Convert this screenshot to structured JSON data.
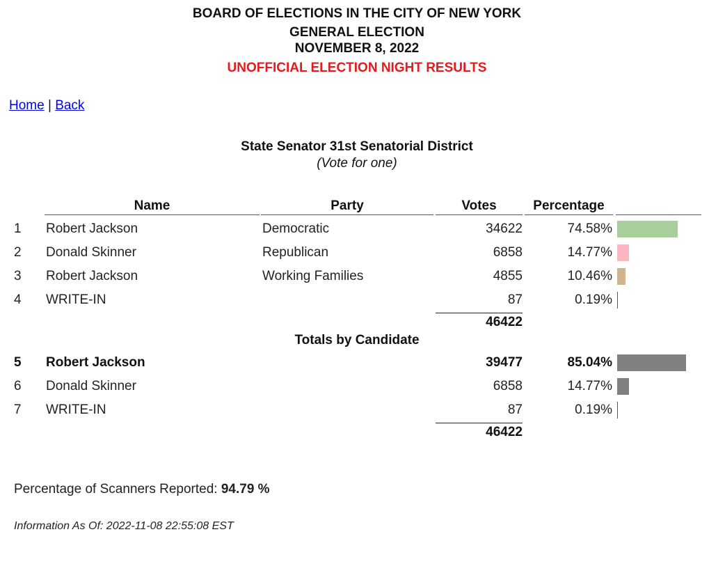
{
  "header": {
    "line1": "BOARD OF ELECTIONS IN THE CITY OF NEW YORK",
    "line2": "GENERAL ELECTION",
    "line3": "NOVEMBER 8, 2022",
    "line4": "UNOFFICIAL ELECTION NIGHT RESULTS"
  },
  "nav": {
    "home": "Home",
    "separator": "|",
    "back": "Back"
  },
  "contest": {
    "title": "State Senator 31st Senatorial District",
    "instruction": "(Vote for one)"
  },
  "columns": {
    "name": "Name",
    "party": "Party",
    "votes": "Votes",
    "percentage": "Percentage"
  },
  "rows": [
    {
      "num": "1",
      "name": "Robert Jackson",
      "party": "Democratic",
      "votes": "34622",
      "pct": "74.58%",
      "pct_value": 74.58,
      "color": "#a6cf9a"
    },
    {
      "num": "2",
      "name": "Donald Skinner",
      "party": "Republican",
      "votes": "6858",
      "pct": "14.77%",
      "pct_value": 14.77,
      "color": "#ffb6c1"
    },
    {
      "num": "3",
      "name": "Robert Jackson",
      "party": "Working Families",
      "votes": "4855",
      "pct": "10.46%",
      "pct_value": 10.46,
      "color": "#d2b48c"
    },
    {
      "num": "4",
      "name": "WRITE-IN",
      "party": "",
      "votes": "87",
      "pct": "0.19%",
      "pct_value": 0.19,
      "color": "#808080"
    }
  ],
  "total1": "46422",
  "totals_heading": "Totals by Candidate",
  "totals_rows": [
    {
      "num": "5",
      "name": "Robert Jackson",
      "votes": "39477",
      "pct": "85.04%",
      "pct_value": 85.04,
      "color": "#808080",
      "bold": true
    },
    {
      "num": "6",
      "name": "Donald Skinner",
      "votes": "6858",
      "pct": "14.77%",
      "pct_value": 14.77,
      "color": "#808080",
      "bold": false
    },
    {
      "num": "7",
      "name": "WRITE-IN",
      "votes": "87",
      "pct": "0.19%",
      "pct_value": 0.19,
      "color": "#808080",
      "bold": false
    }
  ],
  "total2": "46422",
  "scanners": {
    "label": "Percentage of Scanners Reported:",
    "value": "94.79 %"
  },
  "info": "Information As Of: 2022-11-08 22:55:08 EST"
}
